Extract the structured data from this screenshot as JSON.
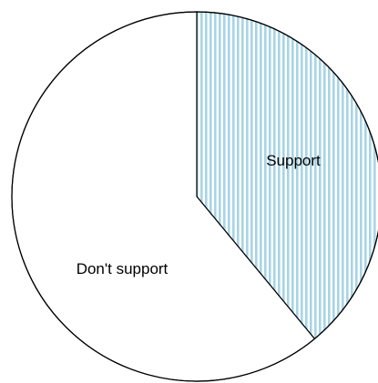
{
  "chart_data": {
    "type": "pie",
    "start_angle": "12 o'clock",
    "direction": "clockwise",
    "slices": [
      {
        "label": "Support",
        "value": 39,
        "fill": "#a8d4e6",
        "pattern": "vertical-stripes"
      },
      {
        "label": "Don't support",
        "value": 61,
        "fill": "#ffffff",
        "pattern": "none"
      }
    ],
    "colors": {
      "stroke": "#000000",
      "stripe_background": "#ffffff"
    }
  }
}
